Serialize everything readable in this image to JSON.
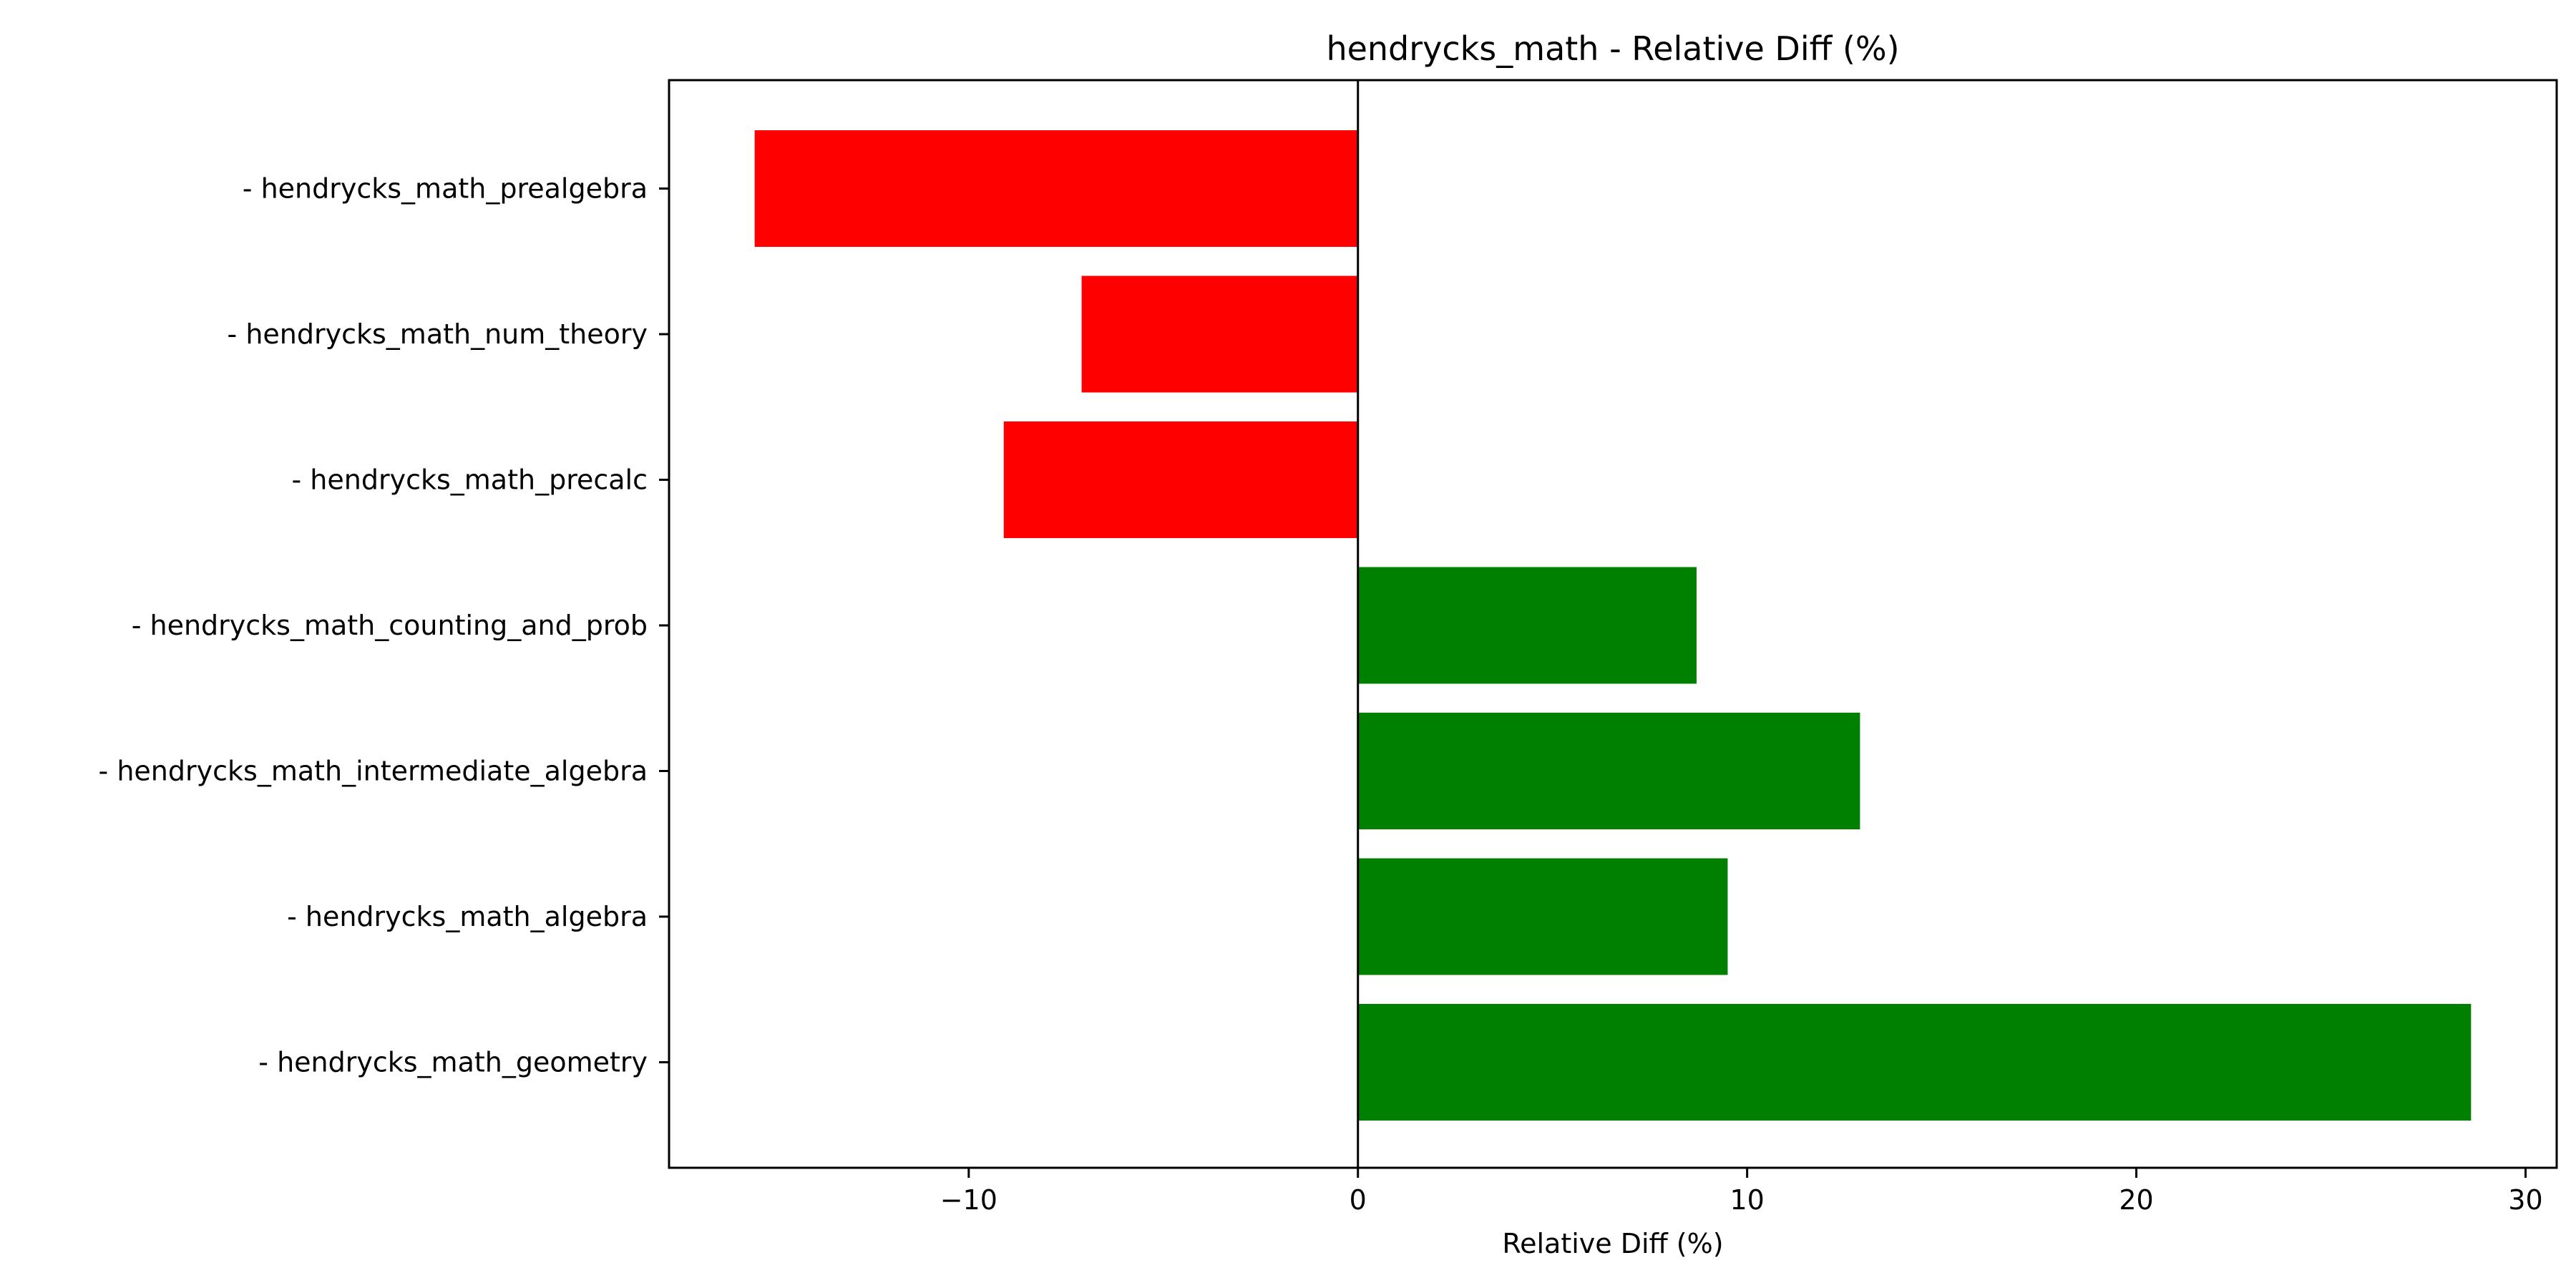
{
  "chart_data": {
    "type": "bar",
    "orientation": "horizontal",
    "title": "hendrycks_math - Relative Diff (%)",
    "xlabel": "Relative Diff (%)",
    "ylabel": "",
    "categories": [
      "- hendrycks_math_prealgebra",
      "- hendrycks_math_num_theory",
      "- hendrycks_math_precalc",
      "- hendrycks_math_counting_and_prob",
      "- hendrycks_math_intermediate_algebra",
      "- hendrycks_math_algebra",
      "- hendrycks_math_geometry"
    ],
    "values": [
      -15.5,
      -7.1,
      -9.1,
      8.7,
      12.9,
      9.5,
      28.6
    ],
    "xlim": [
      -17.7,
      30.8
    ],
    "xticks": [
      -10,
      0,
      10,
      20,
      30
    ],
    "xtick_labels": [
      "−10",
      "0",
      "10",
      "20",
      "30"
    ],
    "zero_line": 0,
    "colors": {
      "negative": "#ff0000",
      "positive": "#008000",
      "axis": "#000000"
    },
    "grid": false,
    "legend": "none"
  }
}
